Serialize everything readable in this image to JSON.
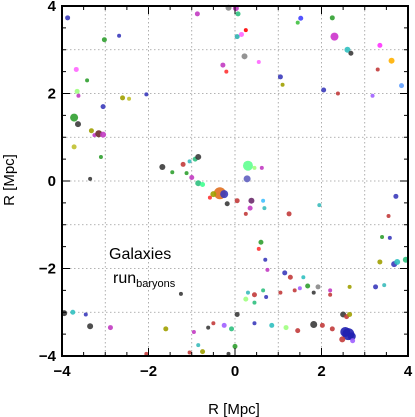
{
  "chart_data": {
    "type": "scatter",
    "xlabel": "R [Mpc]",
    "ylabel": "R [Mpc]",
    "xlim": [
      -4,
      4
    ],
    "ylim": [
      -4,
      4
    ],
    "x_ticks": [
      -4,
      -2,
      0,
      2,
      4
    ],
    "y_ticks": [
      -4,
      -2,
      0,
      2,
      4
    ],
    "x_tick_labels": [
      "−4",
      "−2",
      "0",
      "2",
      "4"
    ],
    "y_tick_labels": [
      "−4",
      "−2",
      "0",
      "2",
      "4"
    ],
    "grid": true,
    "annotation": {
      "line1": "Galaxies",
      "line2_main": "run",
      "line2_sub": "baryons"
    },
    "points": [
      {
        "x": -3.87,
        "y": 3.73,
        "size": 2.5,
        "color": "#3b3bbb"
      },
      {
        "x": -0.87,
        "y": 3.82,
        "size": 2.5,
        "color": "#c23bc2"
      },
      {
        "x": -0.15,
        "y": 3.96,
        "size": 3,
        "color": "#888888"
      },
      {
        "x": 0.02,
        "y": 3.95,
        "size": 3,
        "color": "#c23bc2"
      },
      {
        "x": 0.07,
        "y": 3.82,
        "size": 2.5,
        "color": "#30c080"
      },
      {
        "x": 1.52,
        "y": 3.72,
        "size": 2.5,
        "color": "#4040ff"
      },
      {
        "x": 1.45,
        "y": 3.62,
        "size": 2,
        "color": "#40c040"
      },
      {
        "x": 2.3,
        "y": 3.3,
        "size": 4,
        "color": "#cc33cc"
      },
      {
        "x": 2.25,
        "y": 3.73,
        "size": 2.5,
        "color": "#30a030"
      },
      {
        "x": 2.6,
        "y": 3.0,
        "size": 3,
        "color": "#30c0c0"
      },
      {
        "x": 2.68,
        "y": 2.92,
        "size": 2.5,
        "color": "#3b3b3b"
      },
      {
        "x": 3.35,
        "y": 3.1,
        "size": 2.5,
        "color": "#ff33ff"
      },
      {
        "x": 3.62,
        "y": 2.75,
        "size": 3,
        "color": "#ffb000"
      },
      {
        "x": 3.85,
        "y": 2.18,
        "size": 2.5,
        "color": "#60a0ff"
      },
      {
        "x": 3.3,
        "y": 2.55,
        "size": 2,
        "color": "#c23b3b"
      },
      {
        "x": 0.15,
        "y": 3.35,
        "size": 2.5,
        "color": "#ff66ff"
      },
      {
        "x": 0.25,
        "y": 3.45,
        "size": 2,
        "color": "#ff0000"
      },
      {
        "x": 0.05,
        "y": 3.3,
        "size": 2.5,
        "color": "#30b0b0"
      },
      {
        "x": 0.22,
        "y": 2.85,
        "size": 3,
        "color": "#888888"
      },
      {
        "x": -0.28,
        "y": 2.65,
        "size": 2.5,
        "color": "#c23bc2"
      },
      {
        "x": -0.2,
        "y": 2.5,
        "size": 2,
        "color": "#ff3333"
      },
      {
        "x": 1.05,
        "y": 2.38,
        "size": 2.5,
        "color": "#3b3bbb"
      },
      {
        "x": 0.55,
        "y": 2.72,
        "size": 2,
        "color": "#ff66ff"
      },
      {
        "x": 1.1,
        "y": 2.2,
        "size": 2,
        "color": "#a0a000"
      },
      {
        "x": 2.05,
        "y": 2.08,
        "size": 2.5,
        "color": "#3b3bbb"
      },
      {
        "x": 2.38,
        "y": 2.0,
        "size": 2,
        "color": "#c23b3b"
      },
      {
        "x": 3.18,
        "y": 1.95,
        "size": 2,
        "color": "#a060ff"
      },
      {
        "x": -3.02,
        "y": 3.23,
        "size": 2.5,
        "color": "#30a030"
      },
      {
        "x": -2.68,
        "y": 3.32,
        "size": 2,
        "color": "#3b3bbb"
      },
      {
        "x": -3.67,
        "y": 2.55,
        "size": 2.5,
        "color": "#ff66ff"
      },
      {
        "x": -3.42,
        "y": 2.3,
        "size": 2,
        "color": "#30a030"
      },
      {
        "x": -3.65,
        "y": 2.05,
        "size": 2.5,
        "color": "#a0ff80"
      },
      {
        "x": -3.62,
        "y": 1.95,
        "size": 2,
        "color": "#c23bc2"
      },
      {
        "x": -2.6,
        "y": 1.9,
        "size": 2.5,
        "color": "#a0a000"
      },
      {
        "x": -2.45,
        "y": 1.88,
        "size": 2,
        "color": "#c0c030"
      },
      {
        "x": -2.05,
        "y": 1.98,
        "size": 2,
        "color": "#3b3bbb"
      },
      {
        "x": -3.05,
        "y": 1.7,
        "size": 2.5,
        "color": "#3b3bbb"
      },
      {
        "x": -3.72,
        "y": 1.45,
        "size": 4,
        "color": "#30a030"
      },
      {
        "x": -3.63,
        "y": 1.3,
        "size": 3,
        "color": "#3b3b3b"
      },
      {
        "x": -3.32,
        "y": 1.15,
        "size": 2.5,
        "color": "#a0a000"
      },
      {
        "x": -3.25,
        "y": 1.05,
        "size": 2,
        "color": "#c23bc2"
      },
      {
        "x": -3.15,
        "y": 1.08,
        "size": 3.5,
        "color": "#6b2b2b"
      },
      {
        "x": -3.05,
        "y": 1.06,
        "size": 3,
        "color": "#c23bc2"
      },
      {
        "x": -3.72,
        "y": 0.78,
        "size": 2.5,
        "color": "#c0c030"
      },
      {
        "x": -3.1,
        "y": 0.55,
        "size": 2,
        "color": "#30a030"
      },
      {
        "x": -3.35,
        "y": 0.05,
        "size": 2,
        "color": "#3b3b3b"
      },
      {
        "x": -1.68,
        "y": 0.32,
        "size": 3,
        "color": "#3b3b3b"
      },
      {
        "x": -1.2,
        "y": 0.38,
        "size": 2.5,
        "color": "#c23b3b"
      },
      {
        "x": -1.45,
        "y": 0.2,
        "size": 2,
        "color": "#30a030"
      },
      {
        "x": -1.12,
        "y": 0.18,
        "size": 2,
        "color": "#30a030"
      },
      {
        "x": -1.0,
        "y": 0.08,
        "size": 2.5,
        "color": "#c23bc2"
      },
      {
        "x": -1.05,
        "y": 0.45,
        "size": 2,
        "color": "#3bbbbb"
      },
      {
        "x": -0.92,
        "y": 0.5,
        "size": 2.5,
        "color": "#30c080"
      },
      {
        "x": -0.85,
        "y": 0.55,
        "size": 3,
        "color": "#3b3b3b"
      },
      {
        "x": -0.85,
        "y": -0.05,
        "size": 3,
        "color": "#30c080"
      },
      {
        "x": -0.75,
        "y": -0.08,
        "size": 2.5,
        "color": "#40ff90"
      },
      {
        "x": -0.35,
        "y": -0.28,
        "size": 6,
        "color": "#e07020"
      },
      {
        "x": -0.25,
        "y": -0.3,
        "size": 4,
        "color": "#3b3bbb"
      },
      {
        "x": -0.5,
        "y": -0.3,
        "size": 3,
        "color": "#a0a000"
      },
      {
        "x": -0.58,
        "y": -0.38,
        "size": 2,
        "color": "#ff3333"
      },
      {
        "x": -0.18,
        "y": -0.52,
        "size": 2.5,
        "color": "#3b3b3b"
      },
      {
        "x": 0.05,
        "y": -0.45,
        "size": 2.5,
        "color": "#c23b3b"
      },
      {
        "x": 0.3,
        "y": 0.35,
        "size": 5,
        "color": "#60ff90"
      },
      {
        "x": 0.28,
        "y": 0.05,
        "size": 3.5,
        "color": "#6060c0"
      },
      {
        "x": 0.45,
        "y": 0.3,
        "size": 2,
        "color": "#a0ff80"
      },
      {
        "x": 0.62,
        "y": 0.3,
        "size": 2,
        "color": "#c23bc2"
      },
      {
        "x": 0.38,
        "y": -0.45,
        "size": 3,
        "color": "#6b2b6b"
      },
      {
        "x": 0.35,
        "y": -0.62,
        "size": 2.5,
        "color": "#c23bc2"
      },
      {
        "x": 0.25,
        "y": -0.75,
        "size": 2,
        "color": "#c23b3b"
      },
      {
        "x": 0.65,
        "y": -0.45,
        "size": 2,
        "color": "#40c0ff"
      },
      {
        "x": 0.68,
        "y": -0.62,
        "size": 2,
        "color": "#3bbbbb"
      },
      {
        "x": 1.25,
        "y": -0.75,
        "size": 2.5,
        "color": "#c23b3b"
      },
      {
        "x": 1.95,
        "y": -0.55,
        "size": 2,
        "color": "#3bbbbb"
      },
      {
        "x": 3.72,
        "y": -0.35,
        "size": 2.5,
        "color": "#3b3bbb"
      },
      {
        "x": 3.55,
        "y": -0.8,
        "size": 2,
        "color": "#c23b3b"
      },
      {
        "x": 3.4,
        "y": -1.28,
        "size": 2,
        "color": "#30a030"
      },
      {
        "x": 3.58,
        "y": -1.3,
        "size": 2,
        "color": "#3b3bbb"
      },
      {
        "x": 3.35,
        "y": -1.85,
        "size": 2.5,
        "color": "#a0a000"
      },
      {
        "x": 3.68,
        "y": -1.9,
        "size": 3,
        "color": "#3b3bbb"
      },
      {
        "x": 3.75,
        "y": -1.85,
        "size": 3,
        "color": "#30c0c0"
      },
      {
        "x": 3.95,
        "y": -1.8,
        "size": 3,
        "color": "#30c080"
      },
      {
        "x": 0.6,
        "y": -1.4,
        "size": 2.5,
        "color": "#30a030"
      },
      {
        "x": 0.55,
        "y": -1.55,
        "size": 2,
        "color": "#ff3333"
      },
      {
        "x": 0.7,
        "y": -1.8,
        "size": 2,
        "color": "#3b3bbb"
      },
      {
        "x": 0.75,
        "y": -2.03,
        "size": 2,
        "color": "#c23bc2"
      },
      {
        "x": 0.65,
        "y": -2.5,
        "size": 2,
        "color": "#30c080"
      },
      {
        "x": 1.15,
        "y": -2.1,
        "size": 2.5,
        "color": "#3b3bbb"
      },
      {
        "x": 1.28,
        "y": -2.2,
        "size": 2.5,
        "color": "#c23b3b"
      },
      {
        "x": 1.58,
        "y": -2.2,
        "size": 2,
        "color": "#30c0c0"
      },
      {
        "x": 1.5,
        "y": -2.45,
        "size": 2,
        "color": "#a060ff"
      },
      {
        "x": 1.68,
        "y": -2.4,
        "size": 2.5,
        "color": "#30a030"
      },
      {
        "x": 1.38,
        "y": -2.5,
        "size": 2,
        "color": "#c23b3b"
      },
      {
        "x": 1.92,
        "y": -2.42,
        "size": 2.5,
        "color": "#888888"
      },
      {
        "x": 2.2,
        "y": -2.5,
        "size": 2,
        "color": "#c23bc2"
      },
      {
        "x": 1.82,
        "y": -2.55,
        "size": 2,
        "color": "#3b3b3b"
      },
      {
        "x": 1.05,
        "y": -2.55,
        "size": 2,
        "color": "#c23b3b"
      },
      {
        "x": 0.45,
        "y": -2.6,
        "size": 2.5,
        "color": "#c23b3b"
      },
      {
        "x": 0.3,
        "y": -2.55,
        "size": 2,
        "color": "#3bbbbb"
      },
      {
        "x": 0.72,
        "y": -2.65,
        "size": 2,
        "color": "#3b3bbb"
      },
      {
        "x": 0.25,
        "y": -2.7,
        "size": 2.5,
        "color": "#a0ff80"
      },
      {
        "x": 0.45,
        "y": -2.78,
        "size": 2,
        "color": "#30c080"
      },
      {
        "x": 2.65,
        "y": -2.42,
        "size": 2,
        "color": "#a0a000"
      },
      {
        "x": 3.25,
        "y": -2.42,
        "size": 2.5,
        "color": "#3b3bbb"
      },
      {
        "x": 3.45,
        "y": -2.38,
        "size": 2,
        "color": "#3bbbbb"
      },
      {
        "x": 2.2,
        "y": -2.6,
        "size": 2,
        "color": "#c23b3b"
      },
      {
        "x": 2.25,
        "y": -3.38,
        "size": 2.5,
        "color": "#c23b3b"
      },
      {
        "x": 2.5,
        "y": -3.05,
        "size": 3,
        "color": "#3b3b3b"
      },
      {
        "x": 2.58,
        "y": -3.1,
        "size": 2.5,
        "color": "#c23b3b"
      },
      {
        "x": 2.65,
        "y": -3.05,
        "size": 2.5,
        "color": "#a0a000"
      },
      {
        "x": 2.55,
        "y": -3.45,
        "size": 5,
        "color": "#2020b0"
      },
      {
        "x": 2.62,
        "y": -3.5,
        "size": 6,
        "color": "#2020b0"
      },
      {
        "x": 2.7,
        "y": -3.55,
        "size": 4,
        "color": "#2020b0"
      },
      {
        "x": 2.48,
        "y": -3.62,
        "size": 3,
        "color": "#c23b3b"
      },
      {
        "x": 2.72,
        "y": -3.65,
        "size": 2.5,
        "color": "#a060ff"
      },
      {
        "x": 1.82,
        "y": -3.28,
        "size": 3.5,
        "color": "#3b3b3b"
      },
      {
        "x": 2.02,
        "y": -3.3,
        "size": 2.5,
        "color": "#c23b3b"
      },
      {
        "x": 1.18,
        "y": -3.35,
        "size": 2.5,
        "color": "#a0ff80"
      },
      {
        "x": 1.45,
        "y": -3.42,
        "size": 2.5,
        "color": "#c23b3b"
      },
      {
        "x": 0.45,
        "y": -3.25,
        "size": 2,
        "color": "#3b3bbb"
      },
      {
        "x": 0.85,
        "y": -3.3,
        "size": 2.5,
        "color": "#30c0c0"
      },
      {
        "x": 0.05,
        "y": -3.05,
        "size": 2.5,
        "color": "#3b3b3b"
      },
      {
        "x": -0.5,
        "y": -3.25,
        "size": 2,
        "color": "#c23b3b"
      },
      {
        "x": -0.25,
        "y": -3.3,
        "size": 2.5,
        "color": "#a060ff"
      },
      {
        "x": -0.08,
        "y": -3.38,
        "size": 2.5,
        "color": "#30c080"
      },
      {
        "x": -0.62,
        "y": -3.35,
        "size": 2,
        "color": "#3b3b3b"
      },
      {
        "x": -0.95,
        "y": -3.45,
        "size": 2,
        "color": "#c23bc2"
      },
      {
        "x": 0.0,
        "y": -3.78,
        "size": 2.5,
        "color": "#30a030"
      },
      {
        "x": -0.15,
        "y": -3.95,
        "size": 2,
        "color": "#3b3b3b"
      },
      {
        "x": -0.75,
        "y": -3.9,
        "size": 2.5,
        "color": "#a0a000"
      },
      {
        "x": -0.85,
        "y": -3.75,
        "size": 2,
        "color": "#3bbbbb"
      },
      {
        "x": -1.05,
        "y": -3.92,
        "size": 2,
        "color": "#c23b3b"
      },
      {
        "x": -1.6,
        "y": -3.38,
        "size": 2.5,
        "color": "#a0a000"
      },
      {
        "x": -3.95,
        "y": -3.02,
        "size": 3,
        "color": "#3b3b3b"
      },
      {
        "x": -3.75,
        "y": -3.0,
        "size": 2.5,
        "color": "#30c0c0"
      },
      {
        "x": -3.45,
        "y": -3.05,
        "size": 2,
        "color": "#3b3bbb"
      },
      {
        "x": -3.35,
        "y": -3.32,
        "size": 3,
        "color": "#3b3b3b"
      },
      {
        "x": -2.88,
        "y": -3.35,
        "size": 2.5,
        "color": "#c23bc2"
      },
      {
        "x": -2.05,
        "y": -3.95,
        "size": 2,
        "color": "#c23b3b"
      },
      {
        "x": -1.25,
        "y": -2.58,
        "size": 2,
        "color": "#3b3b3b"
      }
    ]
  }
}
